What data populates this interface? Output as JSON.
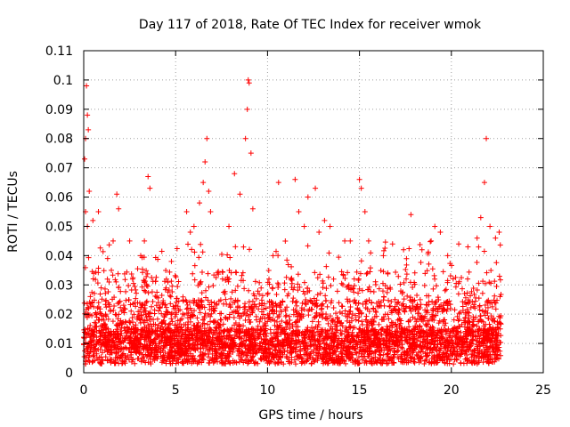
{
  "chart_data": {
    "type": "scatter",
    "title": "Day 117 of 2018, Rate Of TEC Index for receiver wmok",
    "xlabel": "GPS time / hours",
    "ylabel": "ROTI / TECUs",
    "xlim": [
      0,
      25
    ],
    "ylim": [
      0,
      0.11
    ],
    "x_ticks": [
      "0",
      "5",
      "10",
      "15",
      "20",
      "25"
    ],
    "x_tick_values": [
      0,
      5,
      10,
      15,
      20,
      25
    ],
    "y_ticks": [
      "0",
      "0.01",
      "0.02",
      "0.03",
      "0.04",
      "0.05",
      "0.06",
      "0.07",
      "0.08",
      "0.09",
      "0.1",
      "0.11"
    ],
    "y_tick_values": [
      0,
      0.01,
      0.02,
      0.03,
      0.04,
      0.05,
      0.06,
      0.07,
      0.08,
      0.09,
      0.1,
      0.11
    ],
    "grid": true,
    "marker": "+",
    "color": "#ff0000",
    "x_data_range": [
      0,
      22.7
    ],
    "series": [
      {
        "points": [
          [
            0.05,
            0.073
          ],
          [
            0.1,
            0.08
          ],
          [
            0.15,
            0.098
          ],
          [
            0.2,
            0.088
          ],
          [
            0.25,
            0.083
          ],
          [
            0.3,
            0.062
          ],
          [
            0.1,
            0.055
          ],
          [
            0.2,
            0.05
          ],
          [
            0.5,
            0.052
          ],
          [
            0.8,
            0.055
          ],
          [
            1.3,
            0.039
          ],
          [
            1.6,
            0.045
          ],
          [
            1.8,
            0.061
          ],
          [
            1.9,
            0.056
          ],
          [
            2.5,
            0.045
          ],
          [
            3.1,
            0.04
          ],
          [
            3.5,
            0.067
          ],
          [
            3.6,
            0.063
          ],
          [
            3.3,
            0.045
          ],
          [
            4.5,
            0.032
          ],
          [
            5.6,
            0.055
          ],
          [
            5.8,
            0.048
          ],
          [
            6.0,
            0.05
          ],
          [
            6.3,
            0.058
          ],
          [
            6.5,
            0.065
          ],
          [
            6.6,
            0.072
          ],
          [
            6.7,
            0.08
          ],
          [
            6.8,
            0.062
          ],
          [
            6.9,
            0.055
          ],
          [
            7.9,
            0.05
          ],
          [
            8.2,
            0.068
          ],
          [
            8.5,
            0.061
          ],
          [
            8.8,
            0.08
          ],
          [
            8.9,
            0.09
          ],
          [
            8.95,
            0.1
          ],
          [
            9.0,
            0.099
          ],
          [
            9.1,
            0.075
          ],
          [
            9.2,
            0.056
          ],
          [
            10.6,
            0.065
          ],
          [
            10.3,
            0.04
          ],
          [
            11.5,
            0.066
          ],
          [
            11.7,
            0.055
          ],
          [
            12.0,
            0.05
          ],
          [
            12.2,
            0.06
          ],
          [
            12.6,
            0.063
          ],
          [
            12.8,
            0.048
          ],
          [
            13.1,
            0.052
          ],
          [
            13.4,
            0.05
          ],
          [
            14.2,
            0.045
          ],
          [
            14.5,
            0.045
          ],
          [
            15.0,
            0.066
          ],
          [
            15.1,
            0.063
          ],
          [
            15.3,
            0.055
          ],
          [
            15.5,
            0.045
          ],
          [
            16.3,
            0.04
          ],
          [
            16.8,
            0.044
          ],
          [
            17.4,
            0.042
          ],
          [
            17.8,
            0.054
          ],
          [
            18.4,
            0.042
          ],
          [
            18.9,
            0.045
          ],
          [
            19.1,
            0.05
          ],
          [
            19.4,
            0.048
          ],
          [
            19.8,
            0.04
          ],
          [
            20.4,
            0.044
          ],
          [
            20.9,
            0.043
          ],
          [
            21.4,
            0.046
          ],
          [
            21.6,
            0.053
          ],
          [
            21.8,
            0.065
          ],
          [
            21.9,
            0.08
          ],
          [
            22.1,
            0.05
          ],
          [
            22.4,
            0.046
          ],
          [
            22.6,
            0.048
          ]
        ]
      }
    ]
  }
}
